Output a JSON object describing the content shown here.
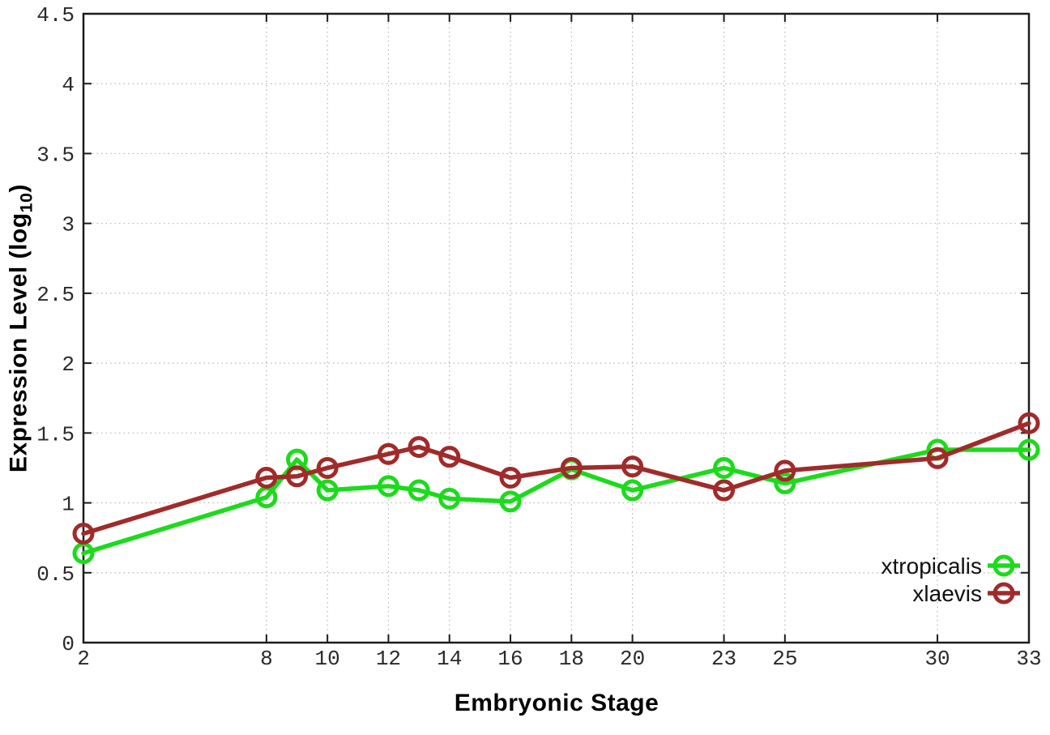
{
  "figure": {
    "background": "#ffffff",
    "axis_color": "#1c1c1c",
    "grid_color": "#b4b4b4",
    "tick_label_color": "#2a2a2a",
    "xlabel": "Embryonic Stage",
    "ylabel_prefix": "Expression Level (log",
    "ylabel_sub": "10",
    "ylabel_suffix": ")"
  },
  "chart_data": {
    "type": "line",
    "title": "",
    "xlabel": "Embryonic Stage",
    "ylabel": "Expression Level (log10)",
    "x": [
      2,
      8,
      9,
      10,
      12,
      13,
      14,
      16,
      18,
      20,
      23,
      25,
      30,
      33
    ],
    "series": [
      {
        "name": "xtropicalis",
        "color": "#1bdb1b",
        "values": [
          0.64,
          1.04,
          1.31,
          1.09,
          1.12,
          1.09,
          1.03,
          1.01,
          1.24,
          1.09,
          1.25,
          1.14,
          1.38,
          1.38
        ]
      },
      {
        "name": "xlaevis",
        "color": "#a12a2a",
        "values": [
          0.78,
          1.18,
          1.19,
          1.25,
          1.35,
          1.4,
          1.33,
          1.18,
          1.25,
          1.26,
          1.09,
          1.23,
          1.32,
          1.57
        ]
      }
    ],
    "xticks": [
      2,
      8,
      10,
      12,
      14,
      16,
      18,
      20,
      23,
      25,
      30,
      33
    ],
    "yticks": [
      0,
      0.5,
      1,
      1.5,
      2,
      2.5,
      3,
      3.5,
      4,
      4.5
    ],
    "xlim": [
      2,
      33
    ],
    "ylim": [
      0,
      4.5
    ],
    "grid": true,
    "grid_style": "dotted",
    "legend_position": "inside-bottom-right",
    "marker": "open-circle",
    "line_style": "solid"
  }
}
